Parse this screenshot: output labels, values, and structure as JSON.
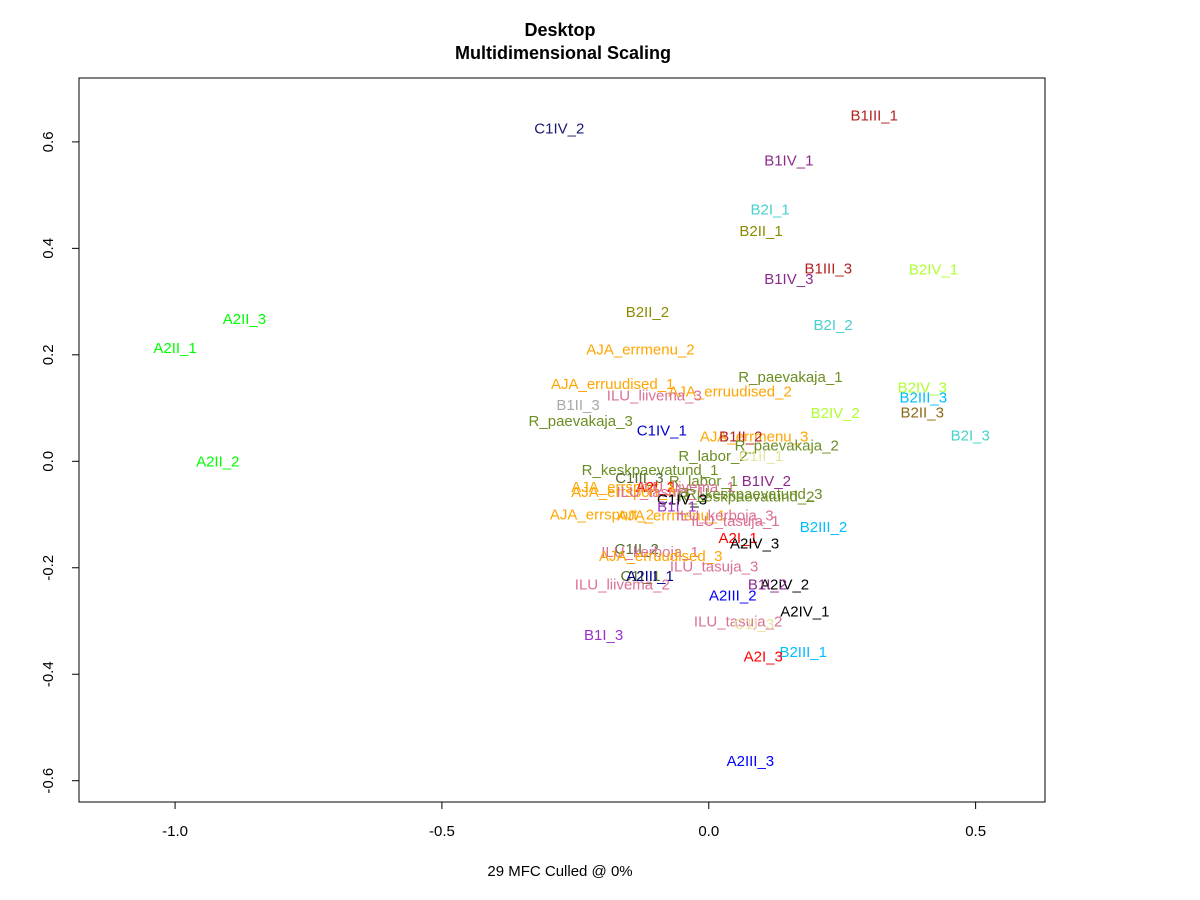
{
  "chart_data": {
    "type": "scatter",
    "title": "Desktop",
    "subtitle": "Multidimensional Scaling",
    "xlabel": "29 MFC  Culled @ 0%",
    "ylabel": "",
    "xlim": [
      -1.18,
      0.63
    ],
    "ylim": [
      -0.64,
      0.72
    ],
    "x_ticks": [
      -1.0,
      -0.5,
      0.0,
      0.5
    ],
    "x_tick_labels": [
      "-1.0",
      "-0.5",
      "0.0",
      "0.5"
    ],
    "y_ticks": [
      -0.6,
      -0.4,
      -0.2,
      0.0,
      0.2,
      0.4,
      0.6
    ],
    "y_tick_labels": [
      "-0.6",
      "-0.4",
      "-0.2",
      "0.0",
      "0.2",
      "0.4",
      "0.6"
    ],
    "grid": false,
    "legend": "none",
    "points": [
      {
        "label": "B1III_1",
        "x": 0.31,
        "y": 0.65,
        "color": "#b22222"
      },
      {
        "label": "C1IV_2",
        "x": -0.28,
        "y": 0.625,
        "color": "#191970"
      },
      {
        "label": "B1IV_1",
        "x": 0.15,
        "y": 0.565,
        "color": "#8b2a8b"
      },
      {
        "label": "B2I_1",
        "x": 0.115,
        "y": 0.473,
        "color": "#48d1cc"
      },
      {
        "label": "B2II_1",
        "x": 0.098,
        "y": 0.433,
        "color": "#8b8b00"
      },
      {
        "label": "B1III_3",
        "x": 0.224,
        "y": 0.362,
        "color": "#b22222"
      },
      {
        "label": "B2IV_1",
        "x": 0.421,
        "y": 0.36,
        "color": "#adff2f"
      },
      {
        "label": "B1IV_3",
        "x": 0.15,
        "y": 0.342,
        "color": "#8b2a8b"
      },
      {
        "label": "A2II_3",
        "x": -0.87,
        "y": 0.267,
        "color": "#00ff00"
      },
      {
        "label": "B2II_2",
        "x": -0.115,
        "y": 0.28,
        "color": "#8b8b00"
      },
      {
        "label": "B2I_2",
        "x": 0.233,
        "y": 0.256,
        "color": "#48d1cc"
      },
      {
        "label": "A2II_1",
        "x": -1.0,
        "y": 0.213,
        "color": "#00ff00"
      },
      {
        "label": "AJA_errmenu_2",
        "x": -0.128,
        "y": 0.21,
        "color": "#ffa500"
      },
      {
        "label": "R_paevakaja_1",
        "x": 0.153,
        "y": 0.158,
        "color": "#6b8e23"
      },
      {
        "label": "AJA_erruudised_1",
        "x": -0.18,
        "y": 0.145,
        "color": "#ffa500"
      },
      {
        "label": "B2IV_3",
        "x": 0.4,
        "y": 0.139,
        "color": "#adff2f"
      },
      {
        "label": "AJA_erruudised_2",
        "x": 0.04,
        "y": 0.131,
        "color": "#ffa500"
      },
      {
        "label": "ILU_liivema_3",
        "x": -0.102,
        "y": 0.124,
        "color": "#db7093"
      },
      {
        "label": "B2III_3",
        "x": 0.402,
        "y": 0.12,
        "color": "#00bfff"
      },
      {
        "label": "B1II_3",
        "x": -0.245,
        "y": 0.106,
        "color": "#a9a9a9"
      },
      {
        "label": "B2IV_2",
        "x": 0.237,
        "y": 0.091,
        "color": "#adff2f"
      },
      {
        "label": "B2II_3",
        "x": 0.4,
        "y": 0.092,
        "color": "#8b6914"
      },
      {
        "label": "R_paevakaja_3",
        "x": -0.24,
        "y": 0.076,
        "color": "#6b8e23"
      },
      {
        "label": "C1IV_1",
        "x": -0.088,
        "y": 0.058,
        "color": "#0000cd"
      },
      {
        "label": "B2I_3",
        "x": 0.49,
        "y": 0.048,
        "color": "#48d1cc"
      },
      {
        "label": "AJA_errmenu_3",
        "x": 0.085,
        "y": 0.047,
        "color": "#ffa500"
      },
      {
        "label": "B1II_2",
        "x": 0.06,
        "y": 0.047,
        "color": "#b22222"
      },
      {
        "label": "R_paevakaja_2",
        "x": 0.146,
        "y": 0.03,
        "color": "#6b8e23"
      },
      {
        "label": "R_labor_2",
        "x": 0.008,
        "y": 0.01,
        "color": "#6b8e23"
      },
      {
        "label": "C1II_1",
        "x": 0.098,
        "y": 0.01,
        "color": "#e6e6a0"
      },
      {
        "label": "A2II_2",
        "x": -0.92,
        "y": 0.0,
        "color": "#00ff00"
      },
      {
        "label": "R_keskpaevatund_1",
        "x": -0.11,
        "y": -0.016,
        "color": "#6b8e23"
      },
      {
        "label": "C1III_3",
        "x": -0.13,
        "y": -0.031,
        "color": "#556b2f"
      },
      {
        "label": "R_labor_1",
        "x": -0.01,
        "y": -0.037,
        "color": "#6b8e23"
      },
      {
        "label": "B1IV_2",
        "x": 0.108,
        "y": -0.037,
        "color": "#8b2a8b"
      },
      {
        "label": "AJA_errsport_1",
        "x": -0.16,
        "y": -0.048,
        "color": "#ffa500"
      },
      {
        "label": "A2I_2",
        "x": -0.1,
        "y": -0.048,
        "color": "#ff0000"
      },
      {
        "label": "ILU_liivema_1",
        "x": -0.04,
        "y": -0.048,
        "color": "#db7093"
      },
      {
        "label": "AJA_errsport_3",
        "x": -0.16,
        "y": -0.058,
        "color": "#ffa500"
      },
      {
        "label": "ILU_tasuja_1",
        "x": -0.09,
        "y": -0.058,
        "color": "#db7093"
      },
      {
        "label": "R_keskpaevatund_3",
        "x": 0.085,
        "y": -0.061,
        "color": "#6b8e23"
      },
      {
        "label": "R_keskpaevatund_2",
        "x": 0.07,
        "y": -0.066,
        "color": "#6b8e23"
      },
      {
        "label": "C1IV_3",
        "x": -0.05,
        "y": -0.072,
        "color": "#000000"
      },
      {
        "label": "B1I_1",
        "x": -0.06,
        "y": -0.085,
        "color": "#9932cc"
      },
      {
        "label": "AJA_errsport_2",
        "x": -0.2,
        "y": -0.1,
        "color": "#ffa500"
      },
      {
        "label": "AJA_errmenu_1",
        "x": -0.07,
        "y": -0.102,
        "color": "#ffa500"
      },
      {
        "label": "ILU_kerboja_3",
        "x": 0.03,
        "y": -0.102,
        "color": "#db7093"
      },
      {
        "label": "ILU_tasuja_1b",
        "x": 0.05,
        "y": -0.112,
        "color": "#db7093"
      },
      {
        "label": "B2III_2",
        "x": 0.215,
        "y": -0.123,
        "color": "#00bfff"
      },
      {
        "label": "A2I_1",
        "x": 0.055,
        "y": -0.144,
        "color": "#ff0000"
      },
      {
        "label": "A2IV_3",
        "x": 0.086,
        "y": -0.154,
        "color": "#000000"
      },
      {
        "label": "C1II_2",
        "x": -0.135,
        "y": -0.165,
        "color": "#556b2f"
      },
      {
        "label": "ILU_kerboja_1",
        "x": -0.11,
        "y": -0.17,
        "color": "#db7093"
      },
      {
        "label": "AJA_erruudised_3",
        "x": -0.09,
        "y": -0.178,
        "color": "#ffa500"
      },
      {
        "label": "ILU_tasuja_3",
        "x": 0.01,
        "y": -0.198,
        "color": "#db7093"
      },
      {
        "label": "C1I_1",
        "x": -0.128,
        "y": -0.215,
        "color": "#556b2f"
      },
      {
        "label": "A2III_1",
        "x": -0.11,
        "y": -0.215,
        "color": "#000080"
      },
      {
        "label": "ILU_liivema_2",
        "x": -0.162,
        "y": -0.231,
        "color": "#db7093"
      },
      {
        "label": "A2IV_2",
        "x": 0.142,
        "y": -0.231,
        "color": "#000000"
      },
      {
        "label": "B1I_2",
        "x": 0.11,
        "y": -0.231,
        "color": "#8b2a8b"
      },
      {
        "label": "A2III_2",
        "x": 0.045,
        "y": -0.252,
        "color": "#0000ff"
      },
      {
        "label": "A2IV_1",
        "x": 0.18,
        "y": -0.282,
        "color": "#000000"
      },
      {
        "label": "ILU_tasuja_2",
        "x": 0.055,
        "y": -0.301,
        "color": "#db7093"
      },
      {
        "label": "C1I_3",
        "x": 0.085,
        "y": -0.306,
        "color": "#e6e6a0"
      },
      {
        "label": "B1I_3",
        "x": -0.197,
        "y": -0.326,
        "color": "#9932cc"
      },
      {
        "label": "B2III_1",
        "x": 0.177,
        "y": -0.358,
        "color": "#00bfff"
      },
      {
        "label": "A2I_3",
        "x": 0.102,
        "y": -0.367,
        "color": "#ff0000"
      },
      {
        "label": "A2III_3",
        "x": 0.078,
        "y": -0.563,
        "color": "#0000ff"
      }
    ]
  }
}
